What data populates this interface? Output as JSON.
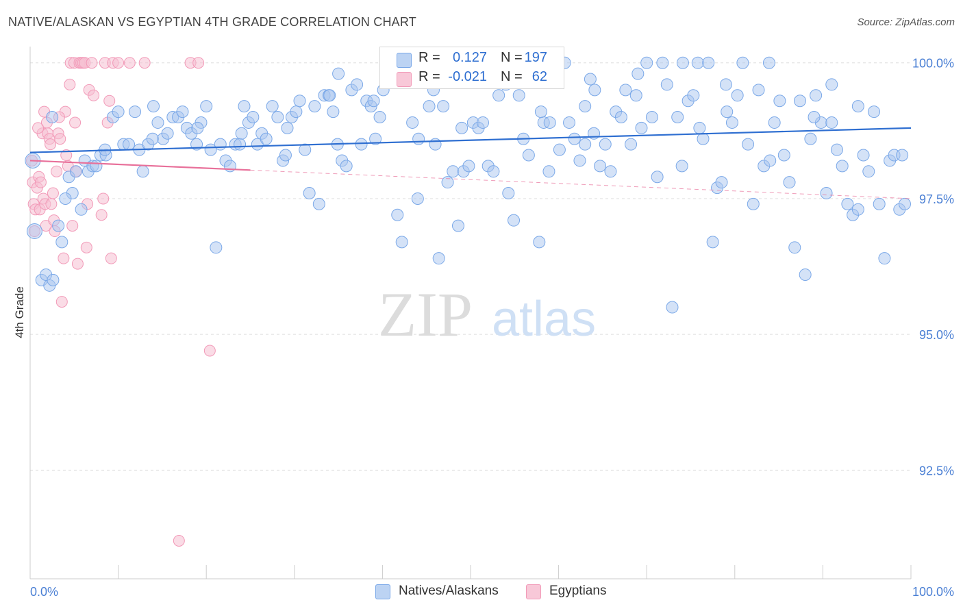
{
  "title": "NATIVE/ALASKAN VS EGYPTIAN 4TH GRADE CORRELATION CHART",
  "source": "Source: ZipAtlas.com",
  "watermark": {
    "zip": "ZIP",
    "atlas": "atlas"
  },
  "legend": {
    "rows": [
      {
        "r_label": "R =",
        "r_value": "0.127",
        "n_label": "N =",
        "n_value": "197",
        "color": "#7aa8e8"
      },
      {
        "r_label": "R =",
        "r_value": "-0.021",
        "n_label": "N =",
        "n_value": "62",
        "color": "#f29ab8"
      }
    ]
  },
  "bottom_legend": {
    "natives": "Natives/Alaskans",
    "egyptians": "Egyptians"
  },
  "colors": {
    "blue_fill": "#a9c6f0",
    "blue_stroke": "#7aa8e8",
    "blue_line": "#2f6fd1",
    "pink_fill": "#f6bfd2",
    "pink_stroke": "#f29ab8",
    "pink_line": "#e8709a",
    "grid": "#dddddd",
    "axis_text": "#4a7fd4"
  },
  "chart_data": {
    "type": "scatter",
    "title": "NATIVE/ALASKAN VS EGYPTIAN 4TH GRADE CORRELATION CHART",
    "xlabel": "",
    "ylabel": "4th Grade",
    "xlim": [
      0,
      100
    ],
    "ylim": [
      90.5,
      100.4
    ],
    "x_tick_labels": [
      "0.0%",
      "100.0%"
    ],
    "y_ticks": [
      92.5,
      95.0,
      97.5,
      100.0
    ],
    "y_tick_labels": [
      "92.5%",
      "95.0%",
      "97.5%",
      "100.0%"
    ],
    "series": [
      {
        "name": "Natives/Alaskans",
        "trend": {
          "x": [
            0,
            100
          ],
          "y": [
            98.35,
            98.8
          ],
          "dashed_from": null
        },
        "points": [
          [
            0.3,
            98.2
          ],
          [
            0.5,
            96.9
          ],
          [
            1.3,
            96.0
          ],
          [
            1.8,
            96.1
          ],
          [
            2.2,
            95.9
          ],
          [
            2.6,
            96.0
          ],
          [
            3.2,
            97.0
          ],
          [
            3.6,
            96.7
          ],
          [
            4.4,
            97.9
          ],
          [
            4.8,
            97.6
          ],
          [
            5.2,
            98.0
          ],
          [
            5.8,
            97.3
          ],
          [
            6.2,
            98.2
          ],
          [
            6.6,
            98.0
          ],
          [
            7.1,
            98.1
          ],
          [
            7.5,
            98.1
          ],
          [
            8.0,
            98.3
          ],
          [
            8.6,
            98.3
          ],
          [
            9.4,
            99.0
          ],
          [
            10.0,
            99.1
          ],
          [
            10.6,
            98.5
          ],
          [
            11.2,
            98.5
          ],
          [
            11.9,
            99.1
          ],
          [
            12.4,
            98.4
          ],
          [
            12.8,
            98.0
          ],
          [
            13.4,
            98.5
          ],
          [
            14.0,
            99.2
          ],
          [
            14.5,
            98.9
          ],
          [
            15.1,
            98.6
          ],
          [
            15.6,
            98.7
          ],
          [
            16.2,
            99.0
          ],
          [
            16.8,
            99.0
          ],
          [
            17.3,
            99.1
          ],
          [
            17.8,
            98.8
          ],
          [
            18.3,
            98.7
          ],
          [
            18.9,
            98.5
          ],
          [
            19.4,
            98.9
          ],
          [
            20.0,
            99.2
          ],
          [
            20.5,
            98.4
          ],
          [
            21.1,
            96.6
          ],
          [
            21.6,
            98.5
          ],
          [
            22.2,
            98.2
          ],
          [
            22.7,
            98.1
          ],
          [
            23.3,
            98.5
          ],
          [
            23.8,
            98.5
          ],
          [
            24.3,
            99.2
          ],
          [
            24.8,
            98.9
          ],
          [
            25.3,
            99.0
          ],
          [
            25.8,
            98.5
          ],
          [
            26.3,
            98.7
          ],
          [
            26.8,
            98.6
          ],
          [
            27.5,
            99.2
          ],
          [
            28.1,
            99.0
          ],
          [
            28.7,
            98.2
          ],
          [
            29.2,
            98.8
          ],
          [
            29.7,
            99.0
          ],
          [
            30.2,
            99.1
          ],
          [
            30.6,
            99.3
          ],
          [
            31.2,
            98.4
          ],
          [
            31.7,
            97.6
          ],
          [
            32.3,
            99.2
          ],
          [
            32.8,
            97.4
          ],
          [
            33.4,
            99.4
          ],
          [
            33.9,
            99.4
          ],
          [
            34.4,
            99.1
          ],
          [
            34.9,
            98.5
          ],
          [
            35.4,
            98.2
          ],
          [
            35.9,
            98.1
          ],
          [
            36.5,
            99.5
          ],
          [
            37.1,
            99.6
          ],
          [
            37.6,
            98.5
          ],
          [
            38.2,
            99.3
          ],
          [
            38.7,
            99.2
          ],
          [
            39.2,
            98.6
          ],
          [
            39.7,
            99.0
          ],
          [
            40.1,
            99.5
          ],
          [
            40.6,
            99.7
          ],
          [
            41.2,
            99.8
          ],
          [
            41.7,
            97.2
          ],
          [
            42.2,
            96.7
          ],
          [
            42.9,
            99.8
          ],
          [
            43.4,
            98.9
          ],
          [
            44.1,
            98.6
          ],
          [
            44.8,
            100.0
          ],
          [
            45.3,
            99.2
          ],
          [
            45.8,
            99.5
          ],
          [
            46.4,
            96.4
          ],
          [
            46.9,
            99.2
          ],
          [
            47.4,
            97.8
          ],
          [
            48.0,
            98.0
          ],
          [
            48.6,
            97.0
          ],
          [
            49.2,
            98.0
          ],
          [
            49.8,
            98.1
          ],
          [
            50.3,
            98.9
          ],
          [
            50.9,
            98.8
          ],
          [
            51.4,
            98.9
          ],
          [
            52.0,
            98.1
          ],
          [
            52.6,
            98.0
          ],
          [
            53.2,
            99.4
          ],
          [
            53.8,
            99.7
          ],
          [
            54.3,
            97.6
          ],
          [
            54.9,
            97.1
          ],
          [
            55.5,
            99.4
          ],
          [
            56.0,
            98.6
          ],
          [
            56.6,
            98.3
          ],
          [
            57.2,
            100.0
          ],
          [
            57.8,
            96.7
          ],
          [
            58.3,
            98.9
          ],
          [
            58.9,
            98.0
          ],
          [
            59.5,
            99.7
          ],
          [
            60.1,
            98.4
          ],
          [
            60.7,
            100.0
          ],
          [
            61.2,
            98.9
          ],
          [
            61.8,
            98.6
          ],
          [
            62.4,
            98.2
          ],
          [
            63.0,
            98.5
          ],
          [
            63.6,
            99.7
          ],
          [
            64.1,
            99.5
          ],
          [
            64.7,
            98.1
          ],
          [
            65.3,
            98.5
          ],
          [
            65.9,
            98.0
          ],
          [
            66.5,
            99.1
          ],
          [
            67.1,
            99.0
          ],
          [
            67.6,
            99.5
          ],
          [
            68.2,
            98.5
          ],
          [
            68.8,
            99.4
          ],
          [
            69.4,
            98.8
          ],
          [
            70.0,
            100.0
          ],
          [
            70.6,
            99.0
          ],
          [
            71.2,
            97.9
          ],
          [
            71.8,
            100.0
          ],
          [
            72.3,
            99.6
          ],
          [
            72.9,
            95.5
          ],
          [
            73.5,
            99.0
          ],
          [
            74.1,
            100.0
          ],
          [
            74.7,
            99.3
          ],
          [
            75.3,
            99.4
          ],
          [
            75.8,
            100.0
          ],
          [
            76.4,
            98.6
          ],
          [
            77.0,
            100.0
          ],
          [
            77.5,
            96.7
          ],
          [
            78.0,
            97.7
          ],
          [
            78.5,
            97.8
          ],
          [
            79.1,
            99.1
          ],
          [
            79.7,
            98.9
          ],
          [
            80.3,
            99.4
          ],
          [
            80.9,
            100.0
          ],
          [
            81.5,
            98.5
          ],
          [
            82.1,
            97.4
          ],
          [
            82.7,
            99.5
          ],
          [
            83.3,
            98.1
          ],
          [
            83.9,
            100.0
          ],
          [
            84.5,
            98.9
          ],
          [
            85.1,
            99.3
          ],
          [
            85.6,
            98.3
          ],
          [
            86.2,
            97.8
          ],
          [
            86.8,
            96.6
          ],
          [
            87.4,
            99.3
          ],
          [
            88.0,
            96.1
          ],
          [
            88.6,
            98.6
          ],
          [
            89.2,
            99.4
          ],
          [
            89.8,
            98.9
          ],
          [
            90.4,
            97.6
          ],
          [
            91.0,
            98.9
          ],
          [
            91.6,
            98.4
          ],
          [
            92.2,
            98.1
          ],
          [
            92.8,
            97.4
          ],
          [
            93.4,
            97.2
          ],
          [
            94.0,
            97.3
          ],
          [
            94.6,
            98.3
          ],
          [
            95.2,
            98.0
          ],
          [
            95.8,
            99.1
          ],
          [
            96.4,
            97.4
          ],
          [
            97.0,
            96.4
          ],
          [
            97.6,
            98.2
          ],
          [
            98.1,
            98.3
          ],
          [
            98.7,
            97.3
          ],
          [
            99.3,
            97.4
          ],
          [
            2.5,
            99.0
          ],
          [
            4.0,
            97.5
          ],
          [
            8.5,
            98.4
          ],
          [
            13.9,
            98.6
          ],
          [
            19.0,
            98.8
          ],
          [
            24.0,
            98.7
          ],
          [
            29.0,
            98.3
          ],
          [
            34.0,
            99.4
          ],
          [
            39.0,
            99.3
          ],
          [
            44.0,
            97.5
          ],
          [
            49.0,
            98.8
          ],
          [
            54.0,
            99.6
          ],
          [
            59.0,
            98.9
          ],
          [
            64.0,
            98.7
          ],
          [
            69.0,
            99.8
          ],
          [
            74.0,
            98.1
          ],
          [
            79.0,
            99.6
          ],
          [
            84.0,
            98.2
          ],
          [
            89.0,
            99.0
          ],
          [
            94.0,
            99.2
          ],
          [
            99.0,
            98.3
          ],
          [
            46.0,
            98.5
          ],
          [
            63.0,
            99.2
          ],
          [
            76.0,
            98.8
          ],
          [
            91.0,
            99.6
          ],
          [
            35.0,
            99.8
          ],
          [
            58.0,
            99.1
          ]
        ]
      },
      {
        "name": "Egyptians",
        "trend": {
          "x": [
            0,
            100
          ],
          "y": [
            98.2,
            97.5
          ],
          "dashed_from": 25
        },
        "points": [
          [
            0.2,
            98.2
          ],
          [
            0.3,
            97.8
          ],
          [
            0.4,
            97.4
          ],
          [
            0.5,
            96.9
          ],
          [
            0.6,
            97.3
          ],
          [
            0.8,
            97.7
          ],
          [
            1.0,
            97.9
          ],
          [
            1.1,
            97.3
          ],
          [
            1.2,
            97.8
          ],
          [
            1.4,
            98.7
          ],
          [
            1.5,
            97.5
          ],
          [
            1.7,
            97.4
          ],
          [
            1.8,
            97.0
          ],
          [
            1.9,
            98.9
          ],
          [
            2.0,
            98.7
          ],
          [
            2.2,
            98.6
          ],
          [
            2.3,
            98.5
          ],
          [
            2.4,
            97.4
          ],
          [
            2.6,
            97.6
          ],
          [
            2.8,
            96.9
          ],
          [
            3.0,
            98.0
          ],
          [
            3.2,
            98.7
          ],
          [
            3.4,
            98.6
          ],
          [
            3.6,
            95.6
          ],
          [
            3.8,
            96.4
          ],
          [
            4.0,
            99.1
          ],
          [
            4.3,
            98.1
          ],
          [
            4.5,
            99.6
          ],
          [
            4.6,
            100.0
          ],
          [
            4.8,
            97.0
          ],
          [
            5.0,
            100.0
          ],
          [
            5.2,
            98.0
          ],
          [
            5.4,
            96.3
          ],
          [
            5.6,
            100.0
          ],
          [
            5.8,
            100.0
          ],
          [
            6.0,
            100.0
          ],
          [
            6.2,
            100.0
          ],
          [
            6.4,
            96.6
          ],
          [
            6.5,
            97.4
          ],
          [
            6.7,
            99.5
          ],
          [
            7.0,
            100.0
          ],
          [
            7.2,
            99.4
          ],
          [
            8.1,
            97.2
          ],
          [
            8.3,
            97.5
          ],
          [
            8.5,
            100.0
          ],
          [
            8.8,
            98.9
          ],
          [
            9.0,
            99.3
          ],
          [
            9.2,
            96.4
          ],
          [
            9.4,
            100.0
          ],
          [
            10.0,
            100.0
          ],
          [
            11.3,
            100.0
          ],
          [
            13.0,
            100.0
          ],
          [
            16.9,
            91.2
          ],
          [
            18.2,
            100.0
          ],
          [
            19.1,
            100.0
          ],
          [
            20.4,
            94.7
          ],
          [
            0.9,
            98.8
          ],
          [
            1.6,
            99.1
          ],
          [
            2.7,
            97.1
          ],
          [
            3.3,
            99.0
          ],
          [
            4.1,
            98.3
          ],
          [
            5.1,
            98.9
          ]
        ]
      }
    ]
  }
}
